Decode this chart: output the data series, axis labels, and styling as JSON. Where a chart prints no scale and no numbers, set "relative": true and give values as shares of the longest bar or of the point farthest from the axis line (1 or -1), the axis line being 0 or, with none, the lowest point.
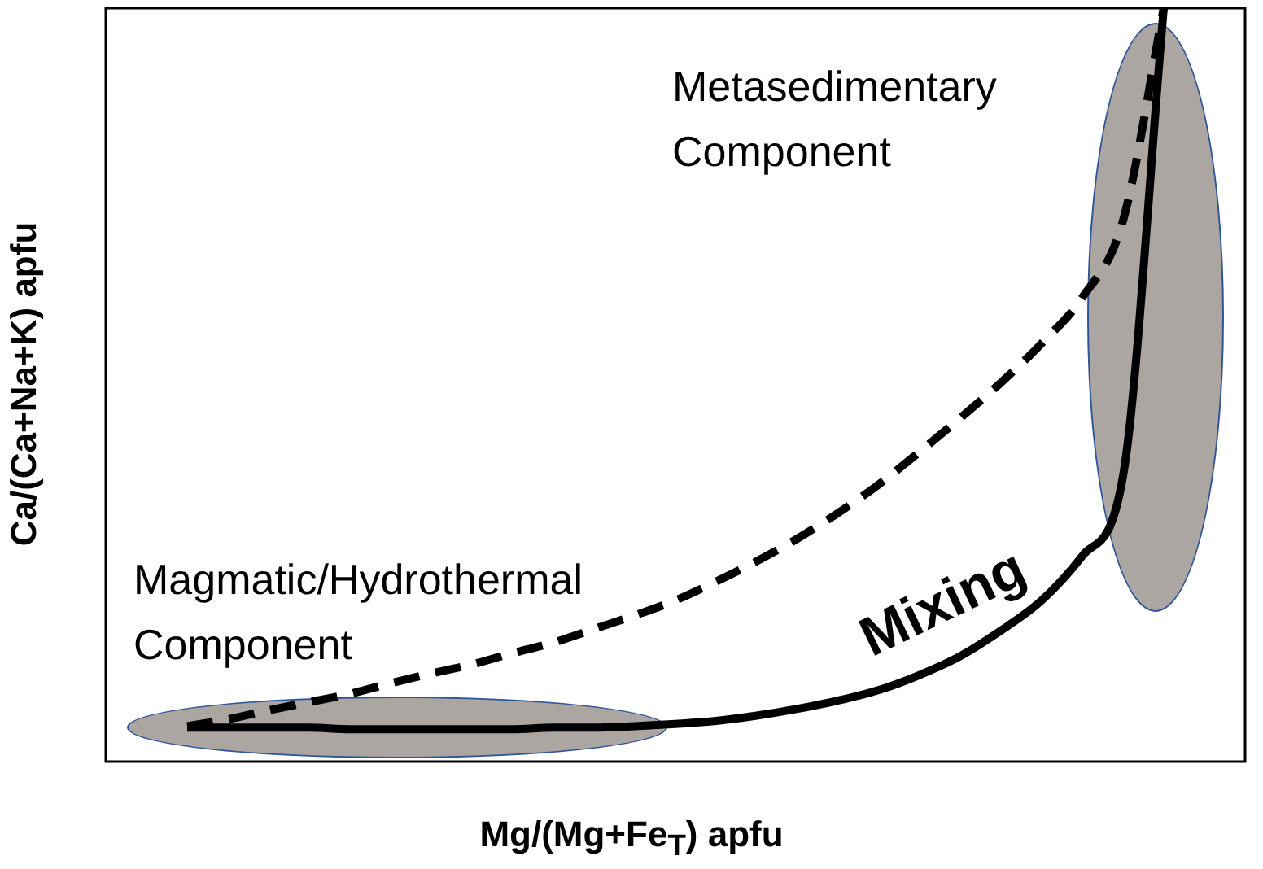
{
  "chart_data": {
    "type": "line",
    "relative": true,
    "xlabel": "Mg/(Mg+Fe$_{T}$) apfu",
    "ylabel": "Ca/(Ca+Na+K) apfu",
    "categories": [
      null,
      null,
      null,
      null,
      null,
      null,
      null,
      null,
      null,
      null,
      null,
      null,
      null,
      null,
      null,
      null,
      null,
      null,
      null,
      null,
      null,
      null,
      null,
      null,
      null,
      null,
      null,
      null,
      null
    ],
    "series": [
      {
        "color": "#000000",
        "line_style": "solid",
        "values": [
          null,
          null,
          0.045,
          0.045,
          0.045,
          0.045,
          0.043,
          0.043,
          0.043,
          0.043,
          0.043,
          0.045,
          0.045,
          0.047,
          0.05,
          0.054,
          0.061,
          0.07,
          0.081,
          0.095,
          0.115,
          0.14,
          0.174,
          0.214,
          0.273,
          0.379,
          1,
          null,
          null
        ]
      },
      {
        "color": "#000000",
        "line_style": "dashed",
        "values": [
          null,
          null,
          0.047,
          0.056,
          0.068,
          0.079,
          0.09,
          0.104,
          0.117,
          0.129,
          0.144,
          0.158,
          0.176,
          0.194,
          0.214,
          0.239,
          0.266,
          0.296,
          0.33,
          0.368,
          0.411,
          0.456,
          0.503,
          0.555,
          0.616,
          0.718,
          1,
          null,
          null
        ]
      }
    ],
    "annotations": [
      "Metasedimentary\nComponent",
      "Magmatic/Hydrothermal\nComponent",
      "Mixing"
    ],
    "legend": false,
    "marker": "none"
  }
}
